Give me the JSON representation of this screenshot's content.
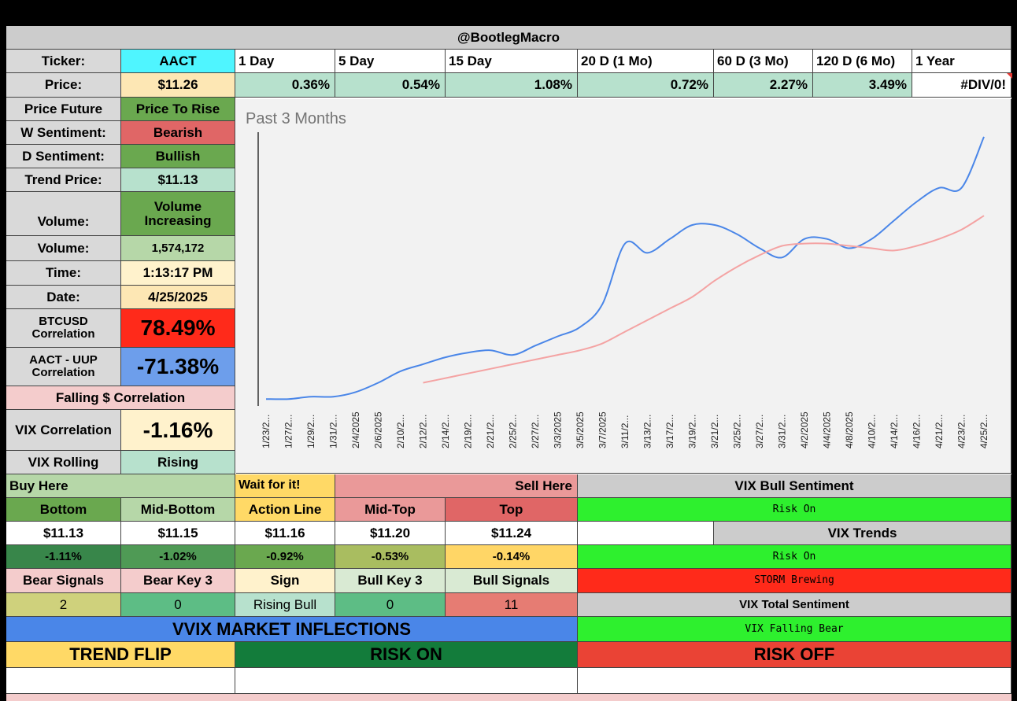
{
  "header": {
    "handle": "@BootlegMacro"
  },
  "ticker": {
    "label": "Ticker:",
    "value": "AACT"
  },
  "periods": [
    "1 Day",
    "5 Day",
    "15 Day",
    "20 D (1 Mo)",
    "60 D (3 Mo)",
    "120 D (6 Mo)",
    "1 Year"
  ],
  "price": {
    "label": "Price:",
    "value": "$11.26"
  },
  "period_changes": [
    "0.36%",
    "0.54%",
    "1.08%",
    "0.72%",
    "2.27%",
    "3.49%",
    "#DIV/0!"
  ],
  "metrics": {
    "price_future": {
      "label": "Price Future",
      "value": "Price To Rise"
    },
    "w_sentiment": {
      "label": "W Sentiment:",
      "value": "Bearish"
    },
    "d_sentiment": {
      "label": "D Sentiment:",
      "value": "Bullish"
    },
    "trend_price": {
      "label": "Trend Price:",
      "value": "$11.13"
    },
    "volume_status": {
      "label": "Volume:",
      "value": "Volume Increasing"
    },
    "volume": {
      "label": "Volume:",
      "value": "1,574,172"
    },
    "time": {
      "label": "Time:",
      "value": "1:13:17 PM"
    },
    "date": {
      "label": "Date:",
      "value": "4/25/2025"
    },
    "btc_corr": {
      "label": "BTCUSD Correlation",
      "value": "78.49%"
    },
    "uup_corr": {
      "label": "AACT - UUP Correlation",
      "value": "-71.38%"
    },
    "falling_dollar": {
      "label": "Falling $ Correlation"
    },
    "vix_corr": {
      "label": "VIX Correlation",
      "value": "-1.16%"
    },
    "vix_rolling": {
      "label": "VIX Rolling",
      "value": "Rising"
    }
  },
  "zones": {
    "buy": "Buy Here",
    "wait": "Wait for it!",
    "sell": "Sell Here",
    "levels": [
      {
        "name": "Bottom",
        "price": "$11.13",
        "pct": "-1.11%"
      },
      {
        "name": "Mid-Bottom",
        "price": "$11.15",
        "pct": "-1.02%"
      },
      {
        "name": "Action Line",
        "price": "$11.16",
        "pct": "-0.92%"
      },
      {
        "name": "Mid-Top",
        "price": "$11.20",
        "pct": "-0.53%"
      },
      {
        "name": "Top",
        "price": "$11.24",
        "pct": "-0.14%"
      }
    ]
  },
  "signals": {
    "headers": [
      "Bear Signals",
      "Bear Key 3",
      "Sign",
      "Bull Key 3",
      "Bull Signals"
    ],
    "values": [
      "2",
      "0",
      "Rising Bull",
      "0",
      "11"
    ]
  },
  "vix": {
    "bull_sentiment_label": "VIX Bull Sentiment",
    "bull_sentiment": "Risk On",
    "trends_label": "VIX Trends",
    "trend1": "Risk On",
    "trend2": "STORM Brewing",
    "total_label": "VIX Total Sentiment",
    "total": "VIX Falling Bear"
  },
  "vvix": {
    "label": "VVIX MARKET INFLECTIONS",
    "trend_flip": "TREND FLIP",
    "risk_on": "RISK ON",
    "risk_off": "RISK OFF"
  },
  "colors": {
    "ticker_cyan": "#4ff5ff",
    "price_tan": "#fde7b4",
    "pct_green": "#b7e1cd",
    "dark_green": "#6aa84f",
    "red": "#e06666",
    "bright_red": "#ff2a1a",
    "blue": "#6d9eeb",
    "vvix_blue": "#4a86e8",
    "bright_green": "#2ef02e",
    "trend_flip_yellow": "#ffd966",
    "risk_on_green": "#137c3b",
    "risk_off_red": "#ea4335",
    "line_price": "#4a86e8",
    "line_trend": "#f4a3a3"
  },
  "chart_data": {
    "type": "line",
    "title": "Past 3 Months",
    "x": [
      "1/23/2...",
      "1/27/2...",
      "1/29/2...",
      "1/31/2...",
      "2/4/2025",
      "2/6/2025",
      "2/10/2...",
      "2/12/2...",
      "2/14/2...",
      "2/19/2...",
      "2/21/2...",
      "2/25/2...",
      "2/27/2...",
      "3/3/2025",
      "3/5/2025",
      "3/7/2025",
      "3/11/2...",
      "3/13/2...",
      "3/17/2...",
      "3/19/2...",
      "3/21/2...",
      "3/25/2...",
      "3/27/2...",
      "3/31/2...",
      "4/2/2025",
      "4/4/2025",
      "4/8/2025",
      "4/10/2...",
      "4/14/2...",
      "4/16/2...",
      "4/21/2...",
      "4/23/2...",
      "4/25/2..."
    ],
    "series": [
      {
        "values": [
          10.11,
          10.11,
          10.12,
          10.12,
          10.14,
          10.18,
          10.23,
          10.26,
          10.29,
          10.31,
          10.32,
          10.3,
          10.34,
          10.38,
          10.42,
          10.52,
          10.78,
          10.74,
          10.8,
          10.86,
          10.86,
          10.82,
          10.76,
          10.72,
          10.8,
          10.8,
          10.76,
          10.8,
          10.88,
          10.96,
          11.02,
          11.02,
          11.24
        ]
      },
      {
        "values": [
          null,
          null,
          null,
          null,
          null,
          null,
          null,
          10.18,
          10.2,
          10.22,
          10.24,
          10.26,
          10.28,
          10.3,
          10.32,
          10.35,
          10.4,
          10.45,
          10.5,
          10.55,
          10.62,
          10.68,
          10.73,
          10.77,
          10.78,
          10.78,
          10.77,
          10.76,
          10.75,
          10.77,
          10.8,
          10.84,
          10.9
        ]
      }
    ],
    "ylim": [
      10.08,
      11.26
    ]
  }
}
